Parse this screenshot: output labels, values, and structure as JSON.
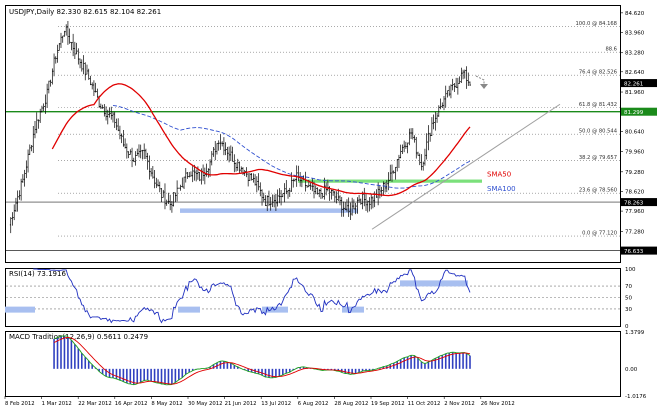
{
  "header": {
    "symbol_line": "USDJPY,Daily  82.330 82.615 82.104 82.261"
  },
  "chart_data": {
    "type": "candlestick",
    "symbol": "USDJPY",
    "timeframe": "Daily",
    "ohlc": {
      "open": 82.33,
      "high": 82.615,
      "low": 82.104,
      "close": 82.261
    },
    "price_axis_ticks": [
      84.62,
      83.96,
      83.28,
      82.64,
      81.96,
      81.3,
      80.64,
      79.96,
      79.28,
      78.62,
      77.96,
      77.28,
      76.62
    ],
    "price_range": [
      76.25,
      84.85
    ],
    "current_price_label": "82.261",
    "highlighted_price_labels": [
      "81.299",
      "78.263",
      "76.633"
    ],
    "x_axis_labels": [
      "8 Feb 2012",
      "1 Mar 2012",
      "22 Mar 2012",
      "16 Apr 2012",
      "8 May 2012",
      "30 May 2012",
      "21 Jun 2012",
      "13 Jul 2012",
      "6 Aug 2012",
      "28 Aug 2012",
      "19 Sep 2012",
      "11 Oct 2012",
      "2 Nov 2012",
      "26 Nov 2012"
    ],
    "fibonacci_levels": [
      {
        "label": "100.0 @ 84.168",
        "price": 84.168
      },
      {
        "label": "88.6",
        "price": 83.3
      },
      {
        "label": "76.4 @ 82.526",
        "price": 82.526
      },
      {
        "label": "61.8 @ 81.432",
        "price": 81.432
      },
      {
        "label": "50.0 @ 80.544",
        "price": 80.544
      },
      {
        "label": "38.2 @ 79.657",
        "price": 79.657
      },
      {
        "label": "23.6 @ 78.560",
        "price": 78.56
      },
      {
        "label": "0.0 @ 77.120",
        "price": 77.12
      }
    ],
    "series": [
      {
        "name": "SMA50",
        "color": "#e00000"
      },
      {
        "name": "SMA100",
        "color": "#3050d0"
      }
    ],
    "resistance_level": 81.299,
    "support_zone": [
      77.9,
      78.05
    ],
    "rsi": {
      "label": "RSI(14) 73.1916",
      "value": 73.1916,
      "levels": [
        100,
        70,
        50,
        30,
        0
      ],
      "range": [
        0,
        100
      ]
    },
    "macd": {
      "label": "MACD Tradition(12,26,9) 0.5611 0.2479",
      "macd": 0.5611,
      "signal": 0.2479,
      "axis_ticks": [
        "1.3799",
        "0.00",
        "-1.0176"
      ],
      "range": [
        -1.0176,
        1.3799
      ]
    },
    "colors": {
      "bars": "#000000",
      "sma50": "#e00000",
      "sma100": "#3050d0",
      "resistance": "#1a8a1a",
      "green_zone": "#7be07b",
      "blue_zone": "#a8bff0",
      "trendline": "#a0a0a0",
      "rsi_line": "#2030c0",
      "macd_hist": "#3040c0",
      "macd_line": "#20a020",
      "signal_line": "#e00000",
      "forecast_arrow": "#888888"
    }
  }
}
